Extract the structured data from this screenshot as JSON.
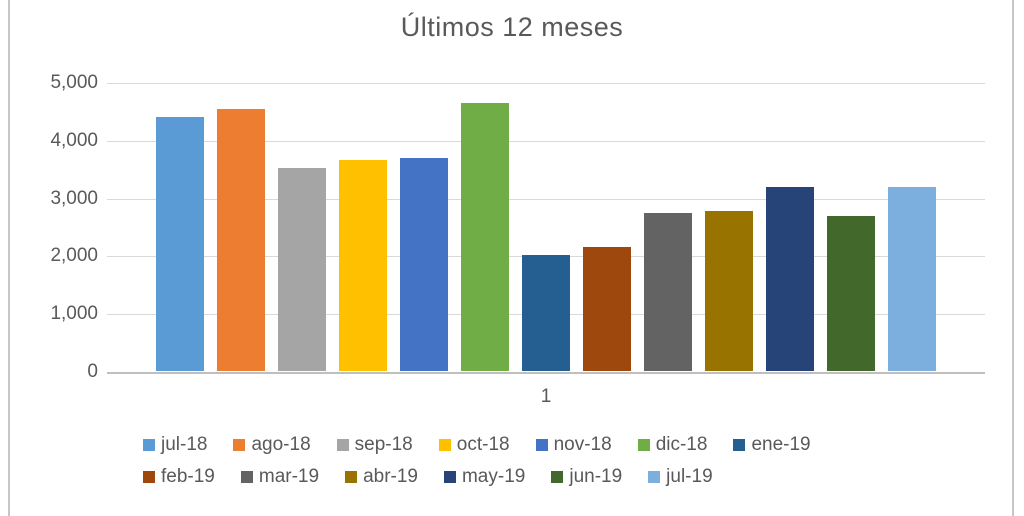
{
  "window": {
    "background_color": "#ffffff",
    "frame_border_color": "#c6c6c6"
  },
  "chart_data": {
    "type": "bar",
    "title": "Últimos 12 meses",
    "xlabel": "1",
    "ylabel": "",
    "categories": [
      "jul-18",
      "ago-18",
      "sep-18",
      "oct-18",
      "nov-18",
      "dic-18",
      "ene-19",
      "feb-19",
      "mar-19",
      "abr-19",
      "may-19",
      "jun-19",
      "jul-19"
    ],
    "values": [
      4390,
      4540,
      3520,
      3650,
      3680,
      4630,
      2010,
      2140,
      2730,
      2770,
      3190,
      2680,
      3180
    ],
    "colors": [
      "#5B9BD5",
      "#ED7D31",
      "#A5A5A5",
      "#FFC000",
      "#4472C4",
      "#70AD47",
      "#255E91",
      "#9E480E",
      "#636363",
      "#997300",
      "#264478",
      "#43682B",
      "#7CAFDD"
    ],
    "ylim": [
      0,
      5000
    ],
    "yticks": [
      0,
      1000,
      2000,
      3000,
      4000,
      5000
    ],
    "ytick_labels": [
      "0",
      "1,000",
      "2,000",
      "3,000",
      "4,000",
      "5,000"
    ],
    "grid": true,
    "legend_position": "bottom",
    "legend_wrap": 7,
    "text_color": "#595959",
    "gridline_color": "#D9D9D9",
    "axis_line_color": "#BFBFBF"
  }
}
